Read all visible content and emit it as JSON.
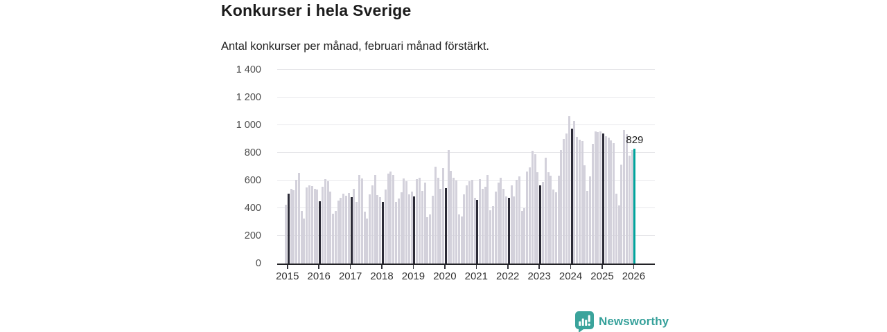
{
  "header": {
    "title": "Konkurser i hela Sverige",
    "subtitle": "Antal konkurser per månad, februari månad förstärkt."
  },
  "chart_data": {
    "type": "bar",
    "title": "Konkurser i hela Sverige",
    "subtitle": "Antal konkurser per månad, februari månad förstärkt.",
    "x_start": "2015-01",
    "x_end": "2026-02",
    "x_tick_labels": [
      "2015",
      "2016",
      "2017",
      "2018",
      "2019",
      "2020",
      "2021",
      "2022",
      "2023",
      "2024",
      "2025",
      "2026"
    ],
    "y_axis": {
      "ticks": [
        0,
        200,
        400,
        600,
        800,
        1000,
        1200,
        1400
      ],
      "tick_labels": [
        "0",
        "200",
        "400",
        "600",
        "800",
        "1 000",
        "1 200",
        "1 400"
      ],
      "ylim": [
        0,
        1400
      ],
      "grid": true
    },
    "series": [
      {
        "name": "Antal konkurser per månad",
        "values": [
          425,
          505,
          540,
          530,
          605,
          655,
          380,
          325,
          550,
          565,
          560,
          540,
          535,
          450,
          555,
          610,
          595,
          520,
          360,
          380,
          455,
          475,
          505,
          490,
          510,
          480,
          540,
          445,
          640,
          615,
          375,
          325,
          500,
          565,
          640,
          495,
          480,
          445,
          535,
          650,
          665,
          640,
          445,
          470,
          515,
          615,
          595,
          500,
          520,
          485,
          610,
          620,
          525,
          585,
          335,
          355,
          490,
          700,
          620,
          540,
          690,
          545,
          820,
          670,
          620,
          600,
          355,
          340,
          500,
          565,
          595,
          605,
          475,
          460,
          610,
          540,
          555,
          640,
          385,
          415,
          520,
          585,
          620,
          540,
          485,
          475,
          565,
          485,
          605,
          630,
          380,
          400,
          665,
          695,
          815,
          790,
          660,
          565,
          590,
          765,
          660,
          635,
          535,
          515,
          635,
          820,
          900,
          940,
          1065,
          975,
          1030,
          915,
          895,
          885,
          710,
          525,
          630,
          865,
          955,
          950,
          955,
          940,
          920,
          910,
          890,
          870,
          505,
          420,
          715,
          965,
          935,
          780,
          820,
          829
        ]
      }
    ],
    "emphasis": {
      "rule": "february-bars-dark",
      "latest_bar": {
        "label": "829",
        "value": 829,
        "month": "2026-02"
      }
    },
    "colors": {
      "bar_normal": "#d3d1db",
      "bar_february": "#2c2b37",
      "bar_latest": "#00a49c",
      "axis": "#222226",
      "gridline": "#e7e7ea"
    },
    "legend": null
  },
  "footer": {
    "brand": "Newsworthy",
    "brand_color": "#35a09a"
  }
}
